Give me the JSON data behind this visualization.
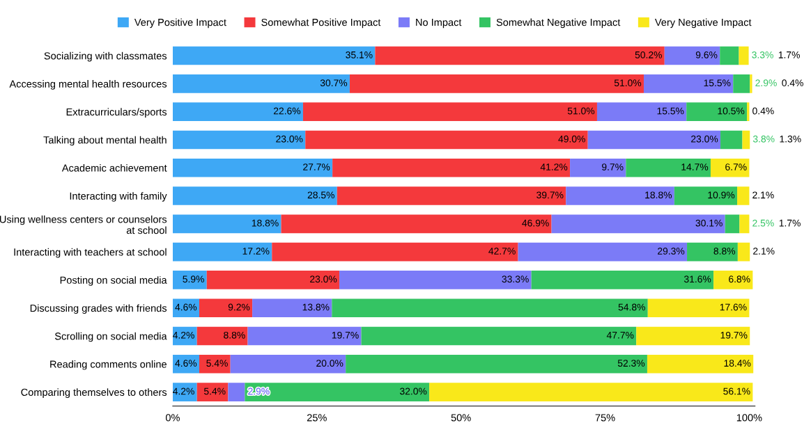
{
  "chart_data": {
    "type": "bar",
    "orientation": "horizontal",
    "stacked": true,
    "legend": "top",
    "grid": false,
    "categories": [
      "Socializing with classmates",
      "Accessing mental health resources",
      "Extracurriculars/sports",
      "Talking about mental health",
      "Academic achievement",
      "Interacting with family",
      "Using wellness centers or counselors\nat school",
      "Interacting with teachers at school",
      "Posting on social media",
      "Discussing grades with friends",
      "Scrolling on social media",
      "Reading comments online",
      "Comparing themselves to others"
    ],
    "xlim": [
      0,
      101
    ],
    "xticks": [
      {
        "value": 0,
        "label": "0%"
      },
      {
        "value": 25,
        "label": "25%"
      },
      {
        "value": 50,
        "label": "50%"
      },
      {
        "value": 75,
        "label": "75%"
      },
      {
        "value": 100,
        "label": "100%"
      }
    ],
    "series": [
      {
        "name": "Very Positive Impact",
        "color": "#3ea8f5",
        "values": [
          35.1,
          30.7,
          22.6,
          23.0,
          27.7,
          28.5,
          18.8,
          17.2,
          5.9,
          4.6,
          4.2,
          4.6,
          4.2
        ],
        "value_labels": [
          "35.1%",
          "30.7%",
          "22.6%",
          "23.0%",
          "27.7%",
          "28.5%",
          "18.8%",
          "17.2%",
          "5.9%",
          "4.6%",
          "4.2%",
          "4.6%",
          "4.2%"
        ]
      },
      {
        "name": "Somewhat Positive Impact",
        "color": "#f4393c",
        "values": [
          50.2,
          51.0,
          51.0,
          49.0,
          41.2,
          39.7,
          46.9,
          42.7,
          23.0,
          9.2,
          8.8,
          5.4,
          5.4
        ],
        "value_labels": [
          "50.2%",
          "51.0%",
          "51.0%",
          "49.0%",
          "41.2%",
          "39.7%",
          "46.9%",
          "42.7%",
          "23.0%",
          "9.2%",
          "8.8%",
          "5.4%",
          "5.4%"
        ]
      },
      {
        "name": "No Impact",
        "color": "#7b7bf7",
        "values": [
          9.6,
          15.5,
          15.5,
          23.0,
          9.7,
          18.8,
          30.1,
          29.3,
          33.3,
          13.8,
          19.7,
          20.0,
          2.9
        ],
        "value_labels": [
          "9.6%",
          "15.5%",
          "15.5%",
          "23.0%",
          "9.7%",
          "18.8%",
          "30.1%",
          "29.3%",
          "33.3%",
          "13.8%",
          "19.7%",
          "20.0%",
          "2.9%"
        ]
      },
      {
        "name": "Somewhat Negative Impact",
        "color": "#34c463",
        "values": [
          3.3,
          2.9,
          10.5,
          3.8,
          14.7,
          10.9,
          2.5,
          8.8,
          31.6,
          54.8,
          47.7,
          52.3,
          32.0
        ],
        "value_labels": [
          "3.3%",
          "2.9%",
          "10.5%",
          "3.8%",
          "14.7%",
          "10.9%",
          "2.5%",
          "8.8%",
          "31.6%",
          "54.8%",
          "47.7%",
          "52.3%",
          "32.0%"
        ]
      },
      {
        "name": "Very Negative Impact",
        "color": "#f9e81a",
        "values": [
          1.7,
          0.4,
          0.4,
          1.3,
          6.7,
          2.1,
          1.7,
          2.1,
          6.8,
          17.6,
          19.7,
          18.4,
          56.1
        ],
        "value_labels": [
          "1.7%",
          "0.4%",
          "0.4%",
          "1.3%",
          "6.7%",
          "2.1%",
          "1.7%",
          "2.1%",
          "6.8%",
          "17.6%",
          "19.7%",
          "18.4%",
          "56.1%"
        ]
      }
    ]
  }
}
